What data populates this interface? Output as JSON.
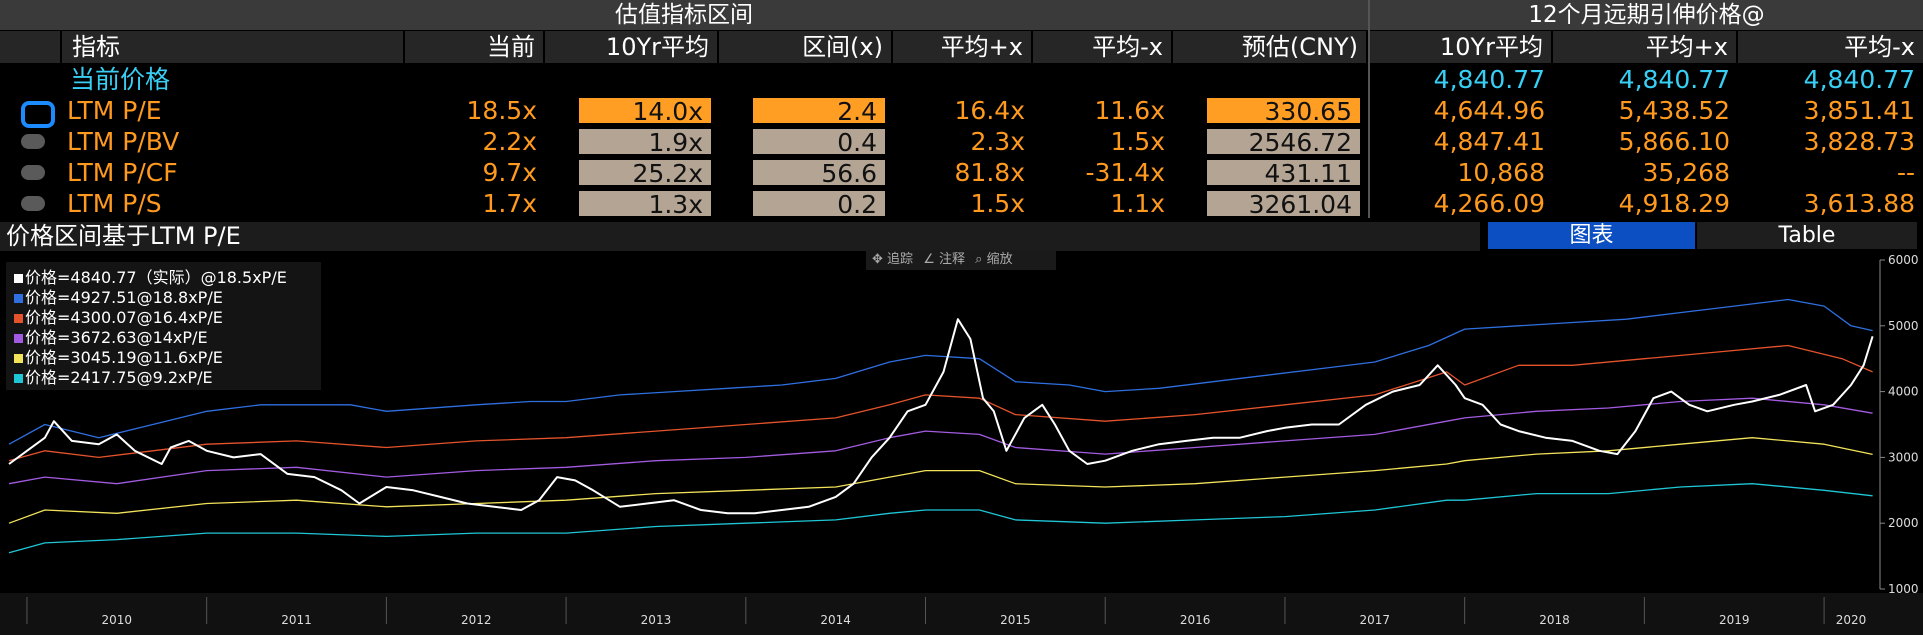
{
  "header": {
    "left_title": "估值指标区间",
    "right_title": "12个月远期引伸价格@"
  },
  "columns": {
    "metric": "指标",
    "current": "当前",
    "avg10": "10Yr平均",
    "range": "区间(x)",
    "plus": "平均+x",
    "minus": "平均-x",
    "est": "预估(CNY)",
    "r_avg10": "10Yr平均",
    "r_plus": "平均+x",
    "r_minus": "平均-x"
  },
  "current_price_row": {
    "label": "当前价格",
    "r_avg10": "4,840.77",
    "r_plus": "4,840.77",
    "r_minus": "4,840.77"
  },
  "rows": [
    {
      "label": "LTM P/E",
      "current": "18.5x",
      "avg10": "14.0x",
      "range": "2.4",
      "plus": "16.4x",
      "minus": "11.6x",
      "est": "330.65",
      "r_avg10": "4,644.96",
      "r_plus": "5,438.52",
      "r_minus": "3,851.41",
      "selected": true
    },
    {
      "label": "LTM P/BV",
      "current": "2.2x",
      "avg10": "1.9x",
      "range": "0.4",
      "plus": "2.3x",
      "minus": "1.5x",
      "est": "2546.72",
      "r_avg10": "4,847.41",
      "r_plus": "5,866.10",
      "r_minus": "3,828.73",
      "selected": false
    },
    {
      "label": "LTM P/CF",
      "current": "9.7x",
      "avg10": "25.2x",
      "range": "56.6",
      "plus": "81.8x",
      "minus": "-31.4x",
      "est": "431.11",
      "r_avg10": "10,868",
      "r_plus": "35,268",
      "r_minus": "--",
      "selected": false
    },
    {
      "label": "LTM P/S",
      "current": "1.7x",
      "avg10": "1.3x",
      "range": "0.2",
      "plus": "1.5x",
      "minus": "1.1x",
      "est": "3261.04",
      "r_avg10": "4,266.09",
      "r_plus": "4,918.29",
      "r_minus": "3,613.88",
      "selected": false
    }
  ],
  "chart_section": {
    "title": "价格区间基于LTM P/E",
    "tab_chart": "图表",
    "tab_table": "Table",
    "toolbar": {
      "track": "追踪",
      "annotate": "注释",
      "zoom": "缩放"
    }
  },
  "colors": {
    "white": "#ffffff",
    "blue": "#2f6fe0",
    "red": "#e4532b",
    "purple": "#a25be0",
    "yellow": "#f2e35a",
    "cyan": "#1fc6d6",
    "orange": "#ff9a1f",
    "accent_tab": "#0b4fc2"
  },
  "chart_data": {
    "type": "line",
    "x_labels": [
      "2010",
      "2011",
      "2012",
      "2013",
      "2014",
      "2015",
      "2016",
      "2017",
      "2018",
      "2019",
      "2020"
    ],
    "y_ticks": [
      1000,
      2000,
      3000,
      4000,
      5000,
      6000
    ],
    "ylim": [
      1000,
      6000
    ],
    "xlim": [
      2009.85,
      2020.3
    ],
    "series": [
      {
        "name": "价格=4840.77（实际）@18.5xP/E",
        "color": "#ffffff",
        "points": [
          [
            2009.9,
            2900
          ],
          [
            2010.0,
            3100
          ],
          [
            2010.1,
            3300
          ],
          [
            2010.15,
            3550
          ],
          [
            2010.25,
            3250
          ],
          [
            2010.4,
            3200
          ],
          [
            2010.5,
            3350
          ],
          [
            2010.6,
            3100
          ],
          [
            2010.75,
            2900
          ],
          [
            2010.8,
            3150
          ],
          [
            2010.9,
            3250
          ],
          [
            2011.0,
            3100
          ],
          [
            2011.15,
            3000
          ],
          [
            2011.3,
            3050
          ],
          [
            2011.45,
            2750
          ],
          [
            2011.6,
            2700
          ],
          [
            2011.75,
            2500
          ],
          [
            2011.85,
            2300
          ],
          [
            2012.0,
            2550
          ],
          [
            2012.15,
            2500
          ],
          [
            2012.3,
            2400
          ],
          [
            2012.45,
            2300
          ],
          [
            2012.6,
            2250
          ],
          [
            2012.75,
            2200
          ],
          [
            2012.85,
            2350
          ],
          [
            2012.95,
            2700
          ],
          [
            2013.05,
            2650
          ],
          [
            2013.15,
            2500
          ],
          [
            2013.3,
            2250
          ],
          [
            2013.45,
            2300
          ],
          [
            2013.6,
            2350
          ],
          [
            2013.75,
            2200
          ],
          [
            2013.9,
            2150
          ],
          [
            2014.05,
            2150
          ],
          [
            2014.2,
            2200
          ],
          [
            2014.35,
            2250
          ],
          [
            2014.5,
            2400
          ],
          [
            2014.6,
            2600
          ],
          [
            2014.7,
            3000
          ],
          [
            2014.8,
            3300
          ],
          [
            2014.9,
            3700
          ],
          [
            2015.0,
            3800
          ],
          [
            2015.1,
            4300
          ],
          [
            2015.18,
            5100
          ],
          [
            2015.25,
            4800
          ],
          [
            2015.32,
            3900
          ],
          [
            2015.38,
            3700
          ],
          [
            2015.45,
            3100
          ],
          [
            2015.55,
            3600
          ],
          [
            2015.65,
            3800
          ],
          [
            2015.72,
            3500
          ],
          [
            2015.8,
            3100
          ],
          [
            2015.9,
            2900
          ],
          [
            2016.0,
            2950
          ],
          [
            2016.15,
            3100
          ],
          [
            2016.3,
            3200
          ],
          [
            2016.45,
            3250
          ],
          [
            2016.6,
            3300
          ],
          [
            2016.75,
            3300
          ],
          [
            2016.9,
            3400
          ],
          [
            2017.0,
            3450
          ],
          [
            2017.15,
            3500
          ],
          [
            2017.3,
            3500
          ],
          [
            2017.45,
            3800
          ],
          [
            2017.6,
            4000
          ],
          [
            2017.75,
            4100
          ],
          [
            2017.85,
            4400
          ],
          [
            2017.95,
            4100
          ],
          [
            2018.0,
            3900
          ],
          [
            2018.1,
            3800
          ],
          [
            2018.2,
            3500
          ],
          [
            2018.3,
            3400
          ],
          [
            2018.45,
            3300
          ],
          [
            2018.6,
            3250
          ],
          [
            2018.75,
            3100
          ],
          [
            2018.85,
            3050
          ],
          [
            2018.95,
            3400
          ],
          [
            2019.05,
            3900
          ],
          [
            2019.15,
            4000
          ],
          [
            2019.25,
            3800
          ],
          [
            2019.35,
            3700
          ],
          [
            2019.5,
            3800
          ],
          [
            2019.6,
            3850
          ],
          [
            2019.75,
            3950
          ],
          [
            2019.9,
            4100
          ],
          [
            2019.95,
            3700
          ],
          [
            2020.05,
            3800
          ],
          [
            2020.15,
            4100
          ],
          [
            2020.22,
            4400
          ],
          [
            2020.27,
            4840
          ]
        ]
      },
      {
        "name": "价格=4927.51@18.8xP/E",
        "color": "#2f6fe0",
        "points": [
          [
            2009.9,
            3200
          ],
          [
            2010.1,
            3500
          ],
          [
            2010.4,
            3300
          ],
          [
            2010.7,
            3500
          ],
          [
            2011.0,
            3700
          ],
          [
            2011.3,
            3800
          ],
          [
            2011.8,
            3800
          ],
          [
            2012.0,
            3700
          ],
          [
            2012.5,
            3800
          ],
          [
            2012.8,
            3850
          ],
          [
            2013.0,
            3850
          ],
          [
            2013.3,
            3950
          ],
          [
            2013.6,
            4000
          ],
          [
            2013.9,
            4050
          ],
          [
            2014.2,
            4100
          ],
          [
            2014.5,
            4200
          ],
          [
            2014.8,
            4450
          ],
          [
            2015.0,
            4550
          ],
          [
            2015.3,
            4500
          ],
          [
            2015.5,
            4150
          ],
          [
            2015.8,
            4100
          ],
          [
            2016.0,
            4000
          ],
          [
            2016.3,
            4050
          ],
          [
            2016.6,
            4150
          ],
          [
            2016.9,
            4250
          ],
          [
            2017.2,
            4350
          ],
          [
            2017.5,
            4450
          ],
          [
            2017.8,
            4700
          ],
          [
            2018.0,
            4950
          ],
          [
            2018.3,
            5000
          ],
          [
            2018.6,
            5050
          ],
          [
            2018.9,
            5100
          ],
          [
            2019.2,
            5200
          ],
          [
            2019.5,
            5300
          ],
          [
            2019.8,
            5400
          ],
          [
            2020.0,
            5300
          ],
          [
            2020.15,
            5000
          ],
          [
            2020.27,
            4927
          ]
        ]
      },
      {
        "name": "价格=4300.07@16.4xP/E",
        "color": "#e4532b",
        "points": [
          [
            2009.9,
            2950
          ],
          [
            2010.1,
            3100
          ],
          [
            2010.4,
            3000
          ],
          [
            2010.7,
            3100
          ],
          [
            2011.0,
            3200
          ],
          [
            2011.5,
            3250
          ],
          [
            2012.0,
            3150
          ],
          [
            2012.5,
            3250
          ],
          [
            2013.0,
            3300
          ],
          [
            2013.5,
            3400
          ],
          [
            2014.0,
            3500
          ],
          [
            2014.5,
            3600
          ],
          [
            2014.8,
            3800
          ],
          [
            2015.0,
            3950
          ],
          [
            2015.3,
            3900
          ],
          [
            2015.5,
            3650
          ],
          [
            2016.0,
            3550
          ],
          [
            2016.5,
            3650
          ],
          [
            2017.0,
            3800
          ],
          [
            2017.5,
            3950
          ],
          [
            2017.9,
            4300
          ],
          [
            2018.0,
            4100
          ],
          [
            2018.3,
            4400
          ],
          [
            2018.6,
            4400
          ],
          [
            2019.0,
            4500
          ],
          [
            2019.4,
            4600
          ],
          [
            2019.8,
            4700
          ],
          [
            2020.1,
            4500
          ],
          [
            2020.27,
            4300
          ]
        ]
      },
      {
        "name": "价格=3672.63@14xP/E",
        "color": "#a25be0",
        "points": [
          [
            2009.9,
            2600
          ],
          [
            2010.1,
            2700
          ],
          [
            2010.5,
            2600
          ],
          [
            2011.0,
            2800
          ],
          [
            2011.5,
            2850
          ],
          [
            2012.0,
            2700
          ],
          [
            2012.5,
            2800
          ],
          [
            2013.0,
            2850
          ],
          [
            2013.5,
            2950
          ],
          [
            2014.0,
            3000
          ],
          [
            2014.5,
            3100
          ],
          [
            2014.8,
            3300
          ],
          [
            2015.0,
            3400
          ],
          [
            2015.3,
            3350
          ],
          [
            2015.5,
            3150
          ],
          [
            2016.0,
            3050
          ],
          [
            2016.5,
            3150
          ],
          [
            2017.0,
            3250
          ],
          [
            2017.5,
            3350
          ],
          [
            2017.9,
            3550
          ],
          [
            2018.0,
            3600
          ],
          [
            2018.4,
            3700
          ],
          [
            2018.8,
            3750
          ],
          [
            2019.2,
            3850
          ],
          [
            2019.6,
            3900
          ],
          [
            2020.0,
            3800
          ],
          [
            2020.27,
            3672
          ]
        ]
      },
      {
        "name": "价格=3045.19@11.6xP/E",
        "color": "#f2e35a",
        "points": [
          [
            2009.9,
            2000
          ],
          [
            2010.1,
            2200
          ],
          [
            2010.5,
            2150
          ],
          [
            2011.0,
            2300
          ],
          [
            2011.5,
            2350
          ],
          [
            2012.0,
            2250
          ],
          [
            2012.5,
            2300
          ],
          [
            2013.0,
            2350
          ],
          [
            2013.5,
            2450
          ],
          [
            2014.0,
            2500
          ],
          [
            2014.5,
            2550
          ],
          [
            2014.8,
            2700
          ],
          [
            2015.0,
            2800
          ],
          [
            2015.3,
            2800
          ],
          [
            2015.5,
            2600
          ],
          [
            2016.0,
            2550
          ],
          [
            2016.5,
            2600
          ],
          [
            2017.0,
            2700
          ],
          [
            2017.5,
            2800
          ],
          [
            2017.9,
            2900
          ],
          [
            2018.0,
            2950
          ],
          [
            2018.4,
            3050
          ],
          [
            2018.8,
            3100
          ],
          [
            2019.2,
            3200
          ],
          [
            2019.6,
            3300
          ],
          [
            2020.0,
            3200
          ],
          [
            2020.27,
            3045
          ]
        ]
      },
      {
        "name": "价格=2417.75@9.2xP/E",
        "color": "#1fc6d6",
        "points": [
          [
            2009.9,
            1550
          ],
          [
            2010.1,
            1700
          ],
          [
            2010.5,
            1750
          ],
          [
            2011.0,
            1850
          ],
          [
            2011.5,
            1850
          ],
          [
            2012.0,
            1800
          ],
          [
            2012.5,
            1850
          ],
          [
            2013.0,
            1850
          ],
          [
            2013.5,
            1950
          ],
          [
            2014.0,
            2000
          ],
          [
            2014.5,
            2050
          ],
          [
            2014.8,
            2150
          ],
          [
            2015.0,
            2200
          ],
          [
            2015.3,
            2200
          ],
          [
            2015.5,
            2050
          ],
          [
            2016.0,
            2000
          ],
          [
            2016.5,
            2050
          ],
          [
            2017.0,
            2100
          ],
          [
            2017.5,
            2200
          ],
          [
            2017.9,
            2350
          ],
          [
            2018.0,
            2350
          ],
          [
            2018.4,
            2450
          ],
          [
            2018.8,
            2450
          ],
          [
            2019.2,
            2550
          ],
          [
            2019.6,
            2600
          ],
          [
            2020.0,
            2500
          ],
          [
            2020.27,
            2417
          ]
        ]
      }
    ]
  }
}
